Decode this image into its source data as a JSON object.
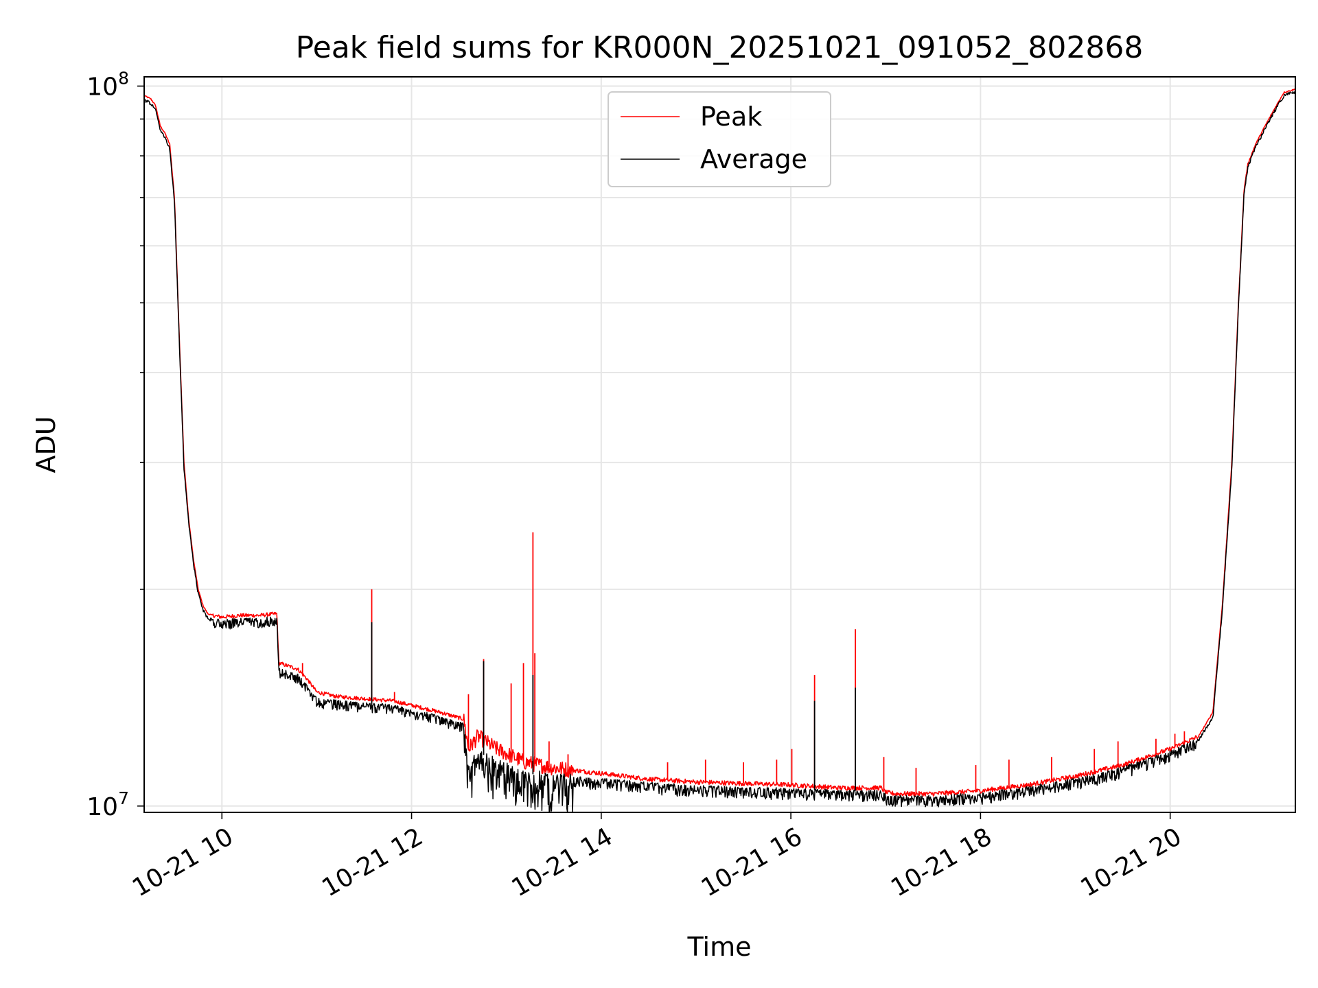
{
  "chart_data": {
    "type": "line",
    "title": "Peak field sums for KR000N_20251021_091052_802868",
    "xlabel": "Time",
    "ylabel": "ADU",
    "x_unit": "hours since 10-21 00:00",
    "xlim": [
      9.18,
      21.32
    ],
    "ylim": [
      9800000,
      103000000
    ],
    "y_scale": "log",
    "grid": true,
    "legend_position": "upper center",
    "x_ticks": [
      {
        "value": 10,
        "label": "10-21 10"
      },
      {
        "value": 12,
        "label": "10-21 12"
      },
      {
        "value": 14,
        "label": "10-21 14"
      },
      {
        "value": 16,
        "label": "10-21 16"
      },
      {
        "value": 18,
        "label": "10-21 18"
      },
      {
        "value": 20,
        "label": "10-21 20"
      }
    ],
    "y_major_ticks": [
      {
        "value": 10000000,
        "base": "10",
        "exp": "7"
      },
      {
        "value": 100000000,
        "base": "10",
        "exp": "8"
      }
    ],
    "y_minor_ticks": [
      20000000,
      30000000,
      40000000,
      50000000,
      60000000,
      70000000,
      80000000,
      90000000
    ],
    "series": [
      {
        "name": "Peak",
        "color": "#ff0000",
        "x": [
          9.18,
          9.25,
          9.3,
          9.35,
          9.4,
          9.45,
          9.5,
          9.55,
          9.6,
          9.65,
          9.7,
          9.75,
          9.8,
          9.85,
          9.9,
          10.0,
          10.2,
          10.4,
          10.58,
          10.6,
          10.8,
          10.9,
          11.0,
          11.2,
          11.5,
          11.8,
          12.0,
          12.3,
          12.55,
          12.6,
          12.7,
          12.9,
          13.2,
          13.5,
          14.0,
          14.5,
          15.0,
          15.5,
          16.0,
          16.5,
          16.95,
          17.0,
          17.1,
          17.5,
          18.0,
          18.5,
          19.0,
          19.5,
          20.0,
          20.3,
          20.45,
          20.55,
          20.65,
          20.72,
          20.78,
          20.82,
          20.9,
          21.0,
          21.1,
          21.2,
          21.32
        ],
        "values": [
          97000000,
          96000000,
          94000000,
          88000000,
          86000000,
          83000000,
          70000000,
          45000000,
          30000000,
          25000000,
          22000000,
          20000000,
          19000000,
          18500000,
          18400000,
          18300000,
          18400000,
          18400000,
          18500000,
          15800000,
          15500000,
          15000000,
          14400000,
          14200000,
          14100000,
          14000000,
          13800000,
          13500000,
          13200000,
          12000000,
          12500000,
          12000000,
          11500000,
          11300000,
          11100000,
          10900000,
          10800000,
          10750000,
          10700000,
          10600000,
          10600000,
          10450000,
          10400000,
          10400000,
          10500000,
          10700000,
          11000000,
          11400000,
          12000000,
          12500000,
          13500000,
          19000000,
          30000000,
          50000000,
          72000000,
          78000000,
          83000000,
          88000000,
          93000000,
          98000000,
          99000000
        ],
        "spikes": [
          {
            "x": 10.85,
            "y": 15800000
          },
          {
            "x": 11.58,
            "y": 20000000
          },
          {
            "x": 11.82,
            "y": 14400000
          },
          {
            "x": 12.6,
            "y": 14300000
          },
          {
            "x": 12.76,
            "y": 16000000
          },
          {
            "x": 13.05,
            "y": 14800000
          },
          {
            "x": 13.18,
            "y": 15800000
          },
          {
            "x": 13.28,
            "y": 24000000
          },
          {
            "x": 13.3,
            "y": 16300000
          },
          {
            "x": 13.45,
            "y": 12300000
          },
          {
            "x": 13.65,
            "y": 11800000
          },
          {
            "x": 14.7,
            "y": 11500000
          },
          {
            "x": 15.1,
            "y": 11600000
          },
          {
            "x": 15.5,
            "y": 11500000
          },
          {
            "x": 15.85,
            "y": 11600000
          },
          {
            "x": 16.01,
            "y": 12000000
          },
          {
            "x": 16.25,
            "y": 15200000
          },
          {
            "x": 16.68,
            "y": 17600000
          },
          {
            "x": 16.98,
            "y": 11700000
          },
          {
            "x": 17.32,
            "y": 11300000
          },
          {
            "x": 17.95,
            "y": 11400000
          },
          {
            "x": 18.3,
            "y": 11600000
          },
          {
            "x": 18.75,
            "y": 11700000
          },
          {
            "x": 19.2,
            "y": 12000000
          },
          {
            "x": 19.45,
            "y": 12300000
          },
          {
            "x": 19.85,
            "y": 12400000
          },
          {
            "x": 20.05,
            "y": 12600000
          },
          {
            "x": 20.15,
            "y": 12700000
          }
        ]
      },
      {
        "name": "Average",
        "color": "#000000",
        "x": [
          9.18,
          9.25,
          9.3,
          9.35,
          9.4,
          9.45,
          9.5,
          9.55,
          9.6,
          9.65,
          9.7,
          9.75,
          9.8,
          9.85,
          9.9,
          10.0,
          10.2,
          10.4,
          10.58,
          10.6,
          10.8,
          10.9,
          11.0,
          11.2,
          11.5,
          11.8,
          12.0,
          12.3,
          12.55,
          12.6,
          12.7,
          12.9,
          13.2,
          13.5,
          14.0,
          14.5,
          15.0,
          15.5,
          16.0,
          16.5,
          16.95,
          17.0,
          17.1,
          17.5,
          18.0,
          18.5,
          19.0,
          19.5,
          20.0,
          20.3,
          20.45,
          20.55,
          20.65,
          20.72,
          20.78,
          20.82,
          20.9,
          21.0,
          21.1,
          21.2,
          21.32
        ],
        "values": [
          96000000,
          95000000,
          93000000,
          87000000,
          85000000,
          82000000,
          69000000,
          44500000,
          29500000,
          24800000,
          21800000,
          19800000,
          18800000,
          18300000,
          18200000,
          18100000,
          18200000,
          18200000,
          18300000,
          15500000,
          15200000,
          14700000,
          14100000,
          14000000,
          13900000,
          13800000,
          13600000,
          13300000,
          13000000,
          11200000,
          11900000,
          11500000,
          11100000,
          11000000,
          10900000,
          10750000,
          10650000,
          10600000,
          10550000,
          10500000,
          10500000,
          10350000,
          10300000,
          10300000,
          10400000,
          10600000,
          10900000,
          11300000,
          11900000,
          12400000,
          13300000,
          18800000,
          29500000,
          49500000,
          71500000,
          77500000,
          82500000,
          87500000,
          92500000,
          97500000,
          98500000
        ],
        "spikes": [
          {
            "x": 11.58,
            "y": 18000000
          },
          {
            "x": 12.76,
            "y": 15900000
          },
          {
            "x": 13.28,
            "y": 15200000
          },
          {
            "x": 16.25,
            "y": 14000000
          },
          {
            "x": 16.68,
            "y": 14600000
          }
        ]
      }
    ]
  }
}
